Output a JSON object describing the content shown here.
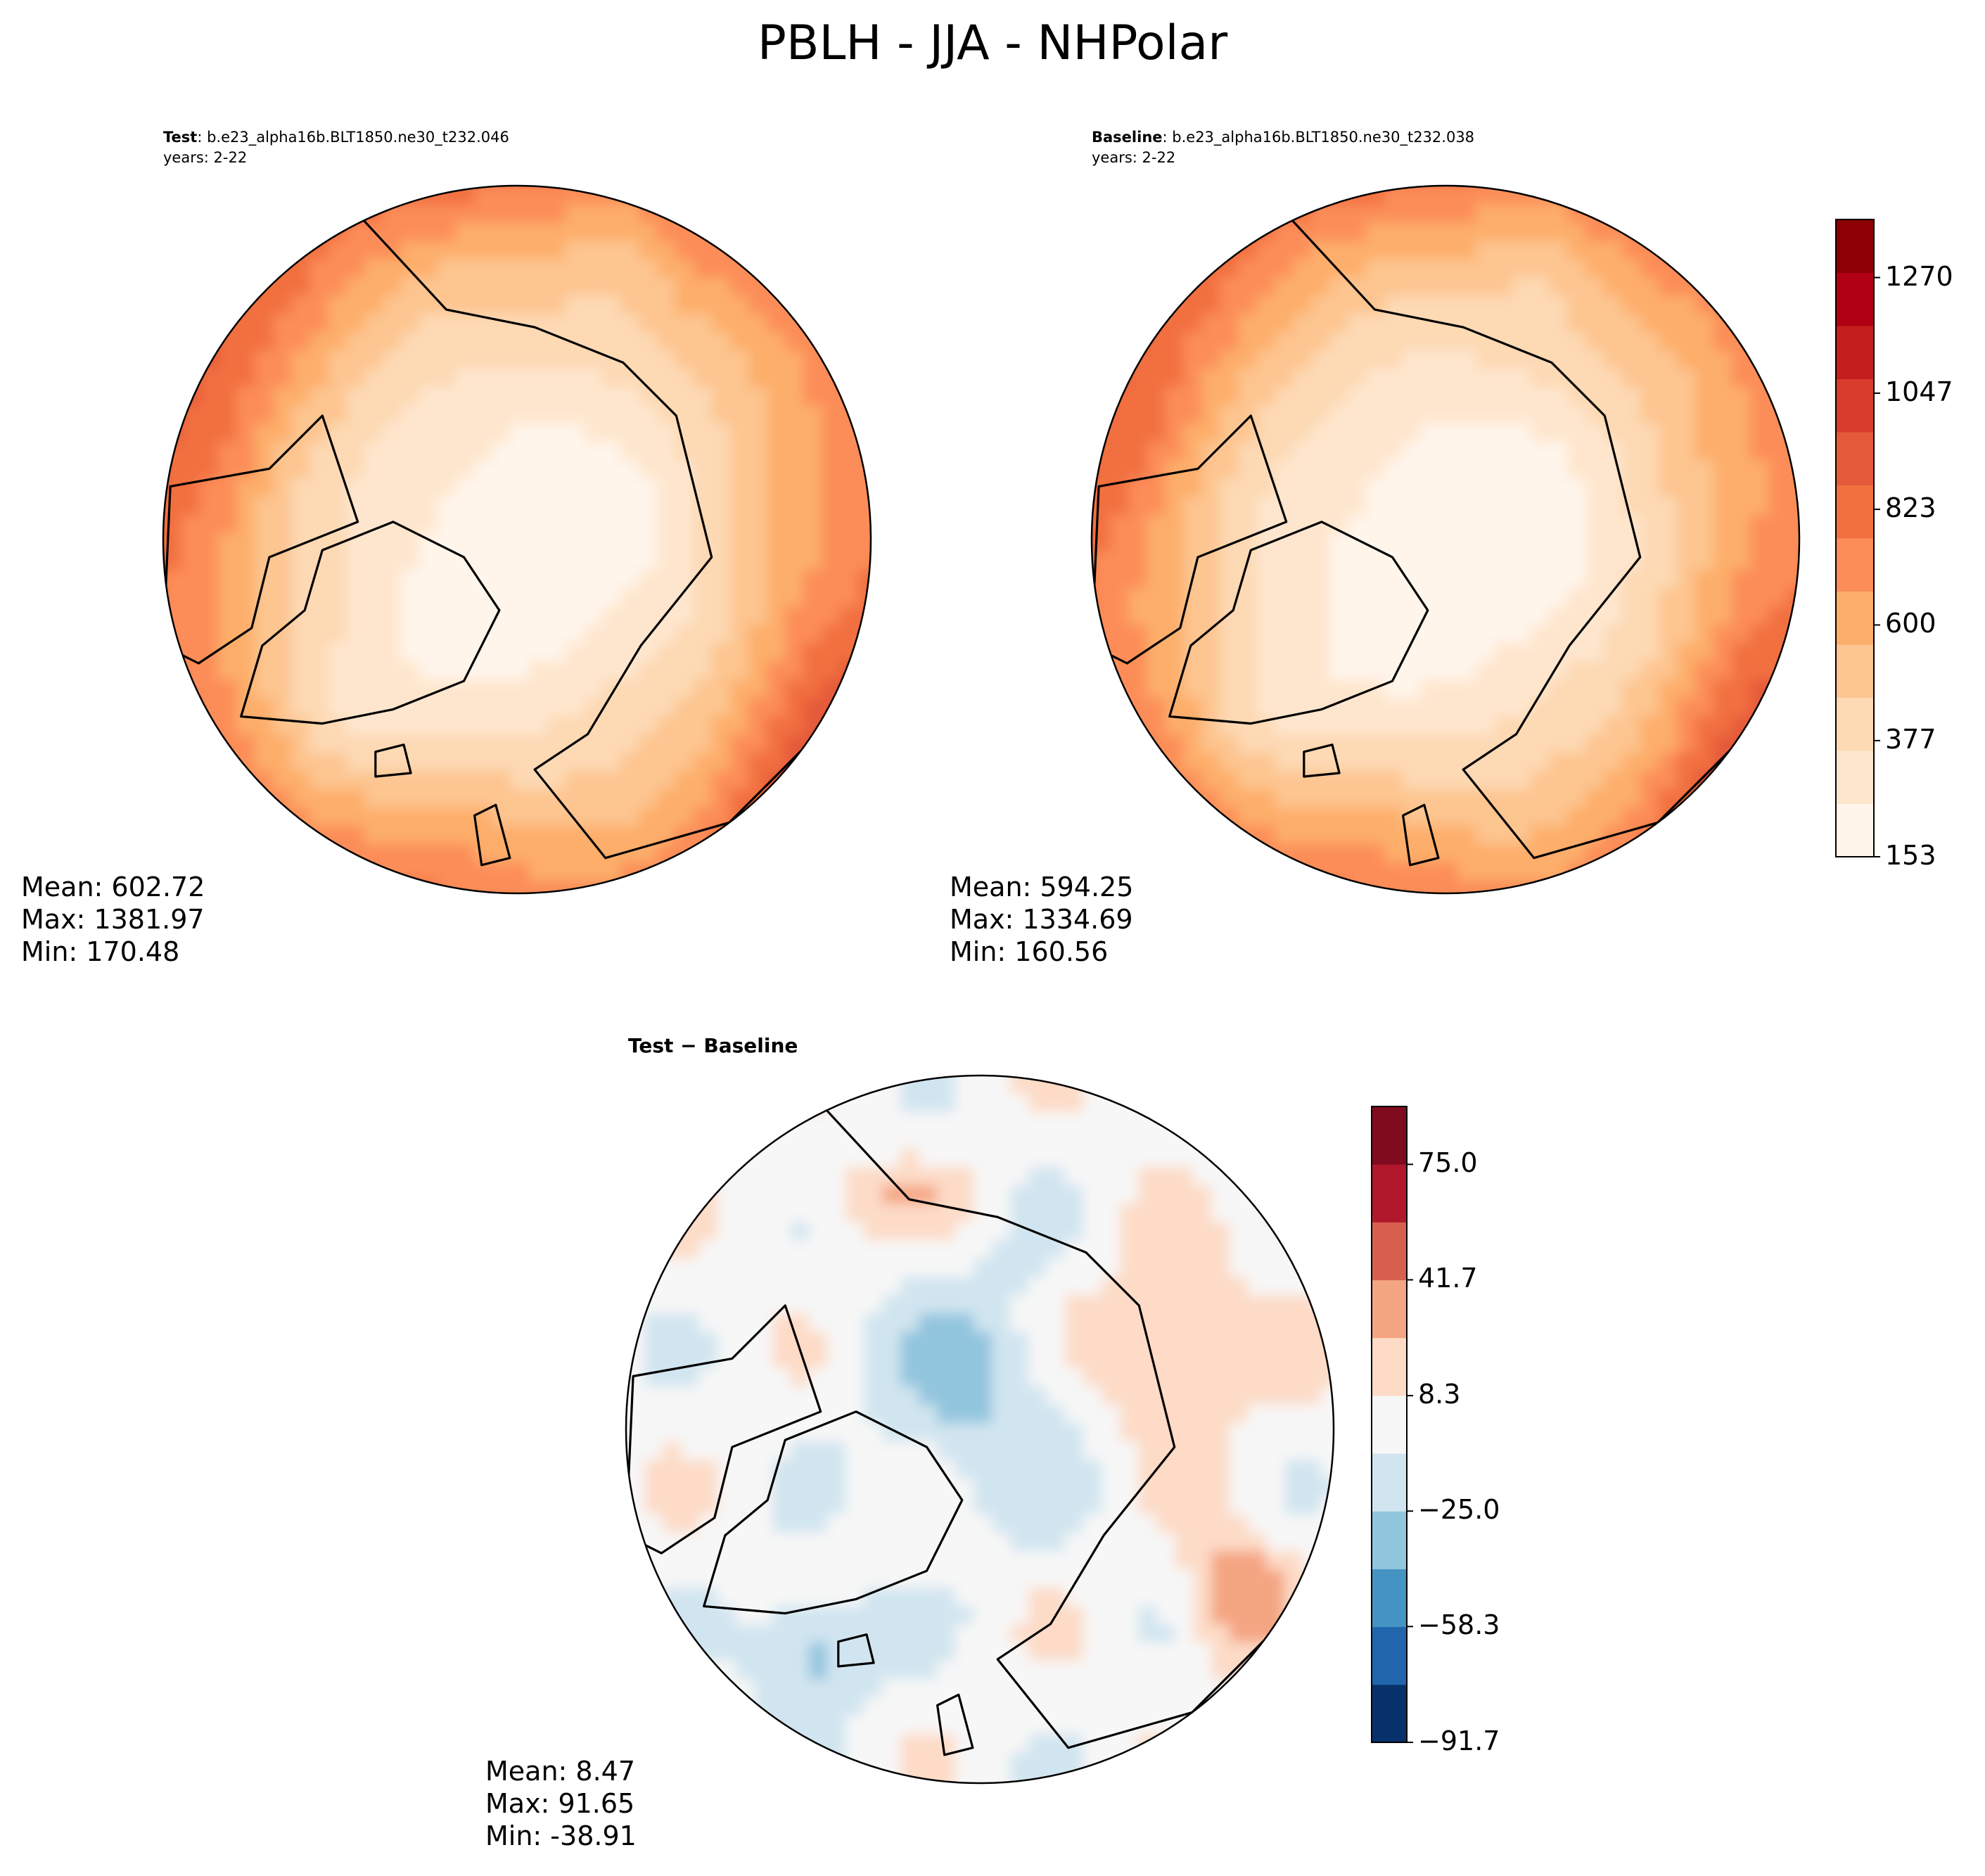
{
  "figure": {
    "title": "PBLH - JJA - NHPolar"
  },
  "panels": {
    "test": {
      "label": "Test",
      "case": ": b.e23_alpha16b.BLT1850.ne30_t232.046",
      "years": "years: 2-22",
      "stats": [
        "Mean: 602.72",
        "Max: 1381.97",
        "Min: 170.48"
      ]
    },
    "baseline": {
      "label": "Baseline",
      "case": ": b.e23_alpha16b.BLT1850.ne30_t232.038",
      "years": "years: 2-22",
      "stats": [
        "Mean: 594.25",
        "Max: 1334.69",
        "Min: 160.56"
      ]
    },
    "diff": {
      "title": "Test − Baseline",
      "stats": [
        "Mean:  8.47",
        "Max: 91.65",
        "Min: -38.91"
      ]
    }
  },
  "colors": {
    "seq": [
      "#fff5eb",
      "#fee6ce",
      "#fdd9b4",
      "#fdc590",
      "#fdae6b",
      "#fc8d59",
      "#f2703f",
      "#e45a3a",
      "#d73c2c",
      "#c41e1e",
      "#b10014",
      "#8c0005"
    ],
    "div": [
      "#08306b",
      "#2166ac",
      "#4393c3",
      "#92c5de",
      "#d1e5f0",
      "#f7f7f7",
      "#fddbc7",
      "#f4a582",
      "#d6604d",
      "#b2182b",
      "#800a1e"
    ]
  },
  "chart_data": [
    {
      "type": "heatmap",
      "panel": "test",
      "projection": "north polar stereographic",
      "field": "PBLH",
      "colorbar": "shared (right of Baseline)",
      "values_summary": {
        "mean": 602.72,
        "max": 1381.97,
        "min": 170.48
      }
    },
    {
      "type": "heatmap",
      "panel": "baseline",
      "projection": "north polar stereographic",
      "field": "PBLH",
      "colorbar": {
        "ticks": [
          153,
          377,
          600,
          823,
          1047,
          1270
        ],
        "tick_labels": [
          "153",
          "377",
          "600",
          "823",
          "1047",
          "1270"
        ],
        "range": [
          153,
          1382
        ],
        "levels": 12
      },
      "values_summary": {
        "mean": 594.25,
        "max": 1334.69,
        "min": 160.56
      }
    },
    {
      "type": "heatmap",
      "panel": "diff",
      "projection": "north polar stereographic",
      "colorbar": {
        "ticks": [
          -91.7,
          -58.3,
          -25.0,
          8.3,
          41.7,
          75.0
        ],
        "tick_labels": [
          "−91.7",
          "−58.3",
          "−25.0",
          "8.3",
          "41.7",
          "75.0"
        ],
        "range": [
          -91.7,
          91.7
        ],
        "levels": 11
      },
      "values_summary": {
        "mean": 8.47,
        "max": 91.65,
        "min": -38.91
      }
    }
  ]
}
